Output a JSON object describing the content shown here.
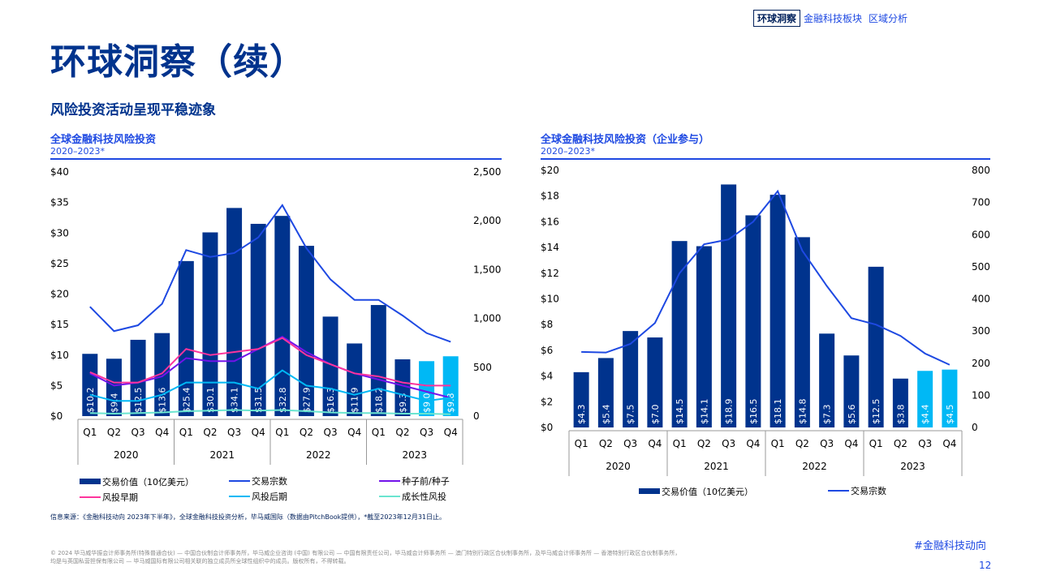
{
  "header": {
    "active_crumb": "环球洞察",
    "crumbs": [
      "金融科技板块",
      "区域分析"
    ]
  },
  "page_title": "环球洞察（续）",
  "section_title": "风险投资活动呈现平稳迹象",
  "colors": {
    "navy": "#00338d",
    "blue": "#1e49e2",
    "cyan": "#00b8f5",
    "purple": "#7213ea",
    "pink": "#fd349c",
    "mint": "#6ae5d0"
  },
  "chart_data": [
    {
      "type": "bar",
      "title": "全球金融科技风险投资",
      "subtitle": "2020–2023*",
      "categories": [
        "Q1",
        "Q2",
        "Q3",
        "Q4",
        "Q1",
        "Q2",
        "Q3",
        "Q4",
        "Q1",
        "Q2",
        "Q3",
        "Q4",
        "Q1",
        "Q2",
        "Q3",
        "Q4"
      ],
      "years": [
        "2020",
        "2021",
        "2022",
        "2023"
      ],
      "left_axis": {
        "ticks": [
          "$0",
          "$5",
          "$10",
          "$15",
          "$20",
          "$25",
          "$30",
          "$35",
          "$40"
        ],
        "range": [
          0,
          40
        ]
      },
      "right_axis": {
        "ticks": [
          "0",
          "500",
          "1,000",
          "1,500",
          "2,000",
          "2,500"
        ],
        "range": [
          0,
          2500
        ]
      },
      "bar_series": {
        "name": "交易价值（10亿美元）",
        "values": [
          10.2,
          9.4,
          12.5,
          13.6,
          25.4,
          30.1,
          34.1,
          31.5,
          32.8,
          27.9,
          16.3,
          11.9,
          18.2,
          9.3,
          9.0,
          9.8
        ],
        "labels": [
          "$10.2",
          "$9.4",
          "$12.5",
          "$13.6",
          "$25.4",
          "$30.1",
          "$34.1",
          "$31.5",
          "$32.8",
          "$27.9",
          "$16.3",
          "$11.9",
          "$18.2",
          "$9.3",
          "$9.0",
          "$9.8"
        ],
        "highlight_from_index": 14
      },
      "line_series": [
        {
          "name": "交易宗数",
          "axis": "right",
          "color": "#1e49e2",
          "values": [
            1120,
            870,
            930,
            1150,
            1700,
            1630,
            1670,
            1830,
            2160,
            1720,
            1400,
            1190,
            1190,
            1030,
            850,
            760
          ]
        },
        {
          "name": "种子前/种子",
          "axis": "left",
          "color": "#7213ea",
          "values": [
            7.0,
            5.0,
            5.5,
            6.5,
            9.5,
            9.0,
            9.0,
            11.0,
            13.0,
            10.5,
            8.5,
            7.0,
            6.0,
            5.0,
            4.0,
            3.0
          ]
        },
        {
          "name": "风投早期",
          "axis": "left",
          "color": "#fd349c",
          "values": [
            7.2,
            5.5,
            5.5,
            7.0,
            11.0,
            10.0,
            10.5,
            11.0,
            12.8,
            10.0,
            8.5,
            7.0,
            6.5,
            5.5,
            5.0,
            5.0
          ]
        },
        {
          "name": "风投后期",
          "axis": "left",
          "color": "#00b8f5",
          "values": [
            3.5,
            2.5,
            2.5,
            3.5,
            5.5,
            5.5,
            5.5,
            4.5,
            7.5,
            5.0,
            4.5,
            3.5,
            4.5,
            3.5,
            2.5,
            3.0
          ]
        },
        {
          "name": "成长性风投",
          "axis": "left",
          "color": "#6ae5d0",
          "values": [
            0.5,
            0.4,
            0.5,
            0.6,
            0.8,
            0.9,
            1.0,
            0.9,
            1.0,
            0.8,
            0.6,
            0.5,
            0.5,
            0.4,
            0.4,
            0.3
          ]
        }
      ],
      "legend": [
        "交易价值（10亿美元）",
        "交易宗数",
        "种子前/种子",
        "风投早期",
        "风投后期",
        "成长性风投"
      ]
    },
    {
      "type": "bar",
      "title": "全球金融科技风险投资（企业参与）",
      "subtitle": "2020–2023*",
      "categories": [
        "Q1",
        "Q2",
        "Q3",
        "Q4",
        "Q1",
        "Q2",
        "Q3",
        "Q4",
        "Q1",
        "Q2",
        "Q3",
        "Q4",
        "Q1",
        "Q2",
        "Q3",
        "Q4"
      ],
      "years": [
        "2020",
        "2021",
        "2022",
        "2023"
      ],
      "left_axis": {
        "ticks": [
          "$0",
          "$2",
          "$4",
          "$6",
          "$8",
          "$10",
          "$12",
          "$14",
          "$16",
          "$18",
          "$20"
        ],
        "range": [
          0,
          20
        ]
      },
      "right_axis": {
        "ticks": [
          "0",
          "100",
          "200",
          "300",
          "400",
          "500",
          "600",
          "700",
          "800"
        ],
        "range": [
          0,
          800
        ]
      },
      "bar_series": {
        "name": "交易价值（10亿美元）",
        "values": [
          4.3,
          5.4,
          7.5,
          7.0,
          14.5,
          14.1,
          18.9,
          16.5,
          18.1,
          14.8,
          7.3,
          5.6,
          12.5,
          3.8,
          4.4,
          4.5
        ],
        "labels": [
          "$4.3",
          "$5.4",
          "$7.5",
          "$7.0",
          "$14.5",
          "$14.1",
          "$18.9",
          "$16.5",
          "$18.1",
          "$14.8",
          "$7.3",
          "$5.6",
          "$12.5",
          "$3.8",
          "$4.4",
          "$4.5"
        ],
        "highlight_from_index": 14
      },
      "line_series": [
        {
          "name": "交易宗数",
          "axis": "right",
          "color": "#1e49e2",
          "values": [
            235,
            233,
            260,
            325,
            480,
            570,
            585,
            640,
            735,
            550,
            440,
            340,
            320,
            285,
            230,
            195
          ]
        }
      ],
      "legend": [
        "交易价值（10亿美元）",
        "交易宗数"
      ]
    }
  ],
  "source_note": "信息来源：《金融科技动向 2023年下半年》，全球金融科技投资分析，毕马威国际（数据由PitchBook提供），*截至2023年12月31日止。",
  "footer_text": "© 2024 毕马威华振会计师事务所(特殊普通合伙) — 中国合伙制会计师事务所，毕马威企业咨询 (中国) 有限公司 — 中国有限责任公司，毕马威会计师事务所 — 澳门特别行政区合伙制事务所，及毕马威会计师事务所 — 香港特别行政区合伙制事务所，均是与英国私营担保有限公司 — 毕马威国际有限公司相关联的独立成员所全球性组织中的成员。版权所有，不得转载。",
  "hashtag": "#金融科技动向",
  "page_number": "12"
}
